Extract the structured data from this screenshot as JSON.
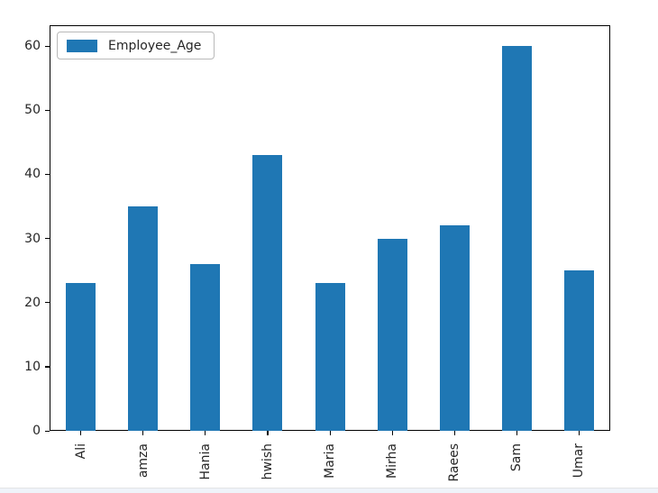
{
  "chart_data": {
    "type": "bar",
    "title": "",
    "xlabel": "",
    "ylabel": "",
    "categories": [
      "Ali",
      "amza",
      "Hania",
      "hwish",
      "Maria",
      "Mirha",
      "Raees",
      "Sam",
      "Umar"
    ],
    "values": [
      23,
      35,
      26,
      43,
      23,
      30,
      32,
      60,
      25
    ],
    "series": [
      {
        "name": "Employee_Age",
        "values": [
          23,
          35,
          26,
          43,
          23,
          30,
          32,
          60,
          25
        ]
      }
    ],
    "yticks": [
      0,
      10,
      20,
      30,
      40,
      50,
      60
    ],
    "ylim": [
      0,
      63.25
    ],
    "grid": false,
    "legend": {
      "label": "Employee_Age",
      "position": "upper-left"
    },
    "bar_color": "#1f77b4",
    "axis_color": "#000000",
    "tick_label_color": "#262626"
  },
  "page": {
    "background_color": "#ffffff",
    "bottom_strip_color": "#eff3f9"
  }
}
